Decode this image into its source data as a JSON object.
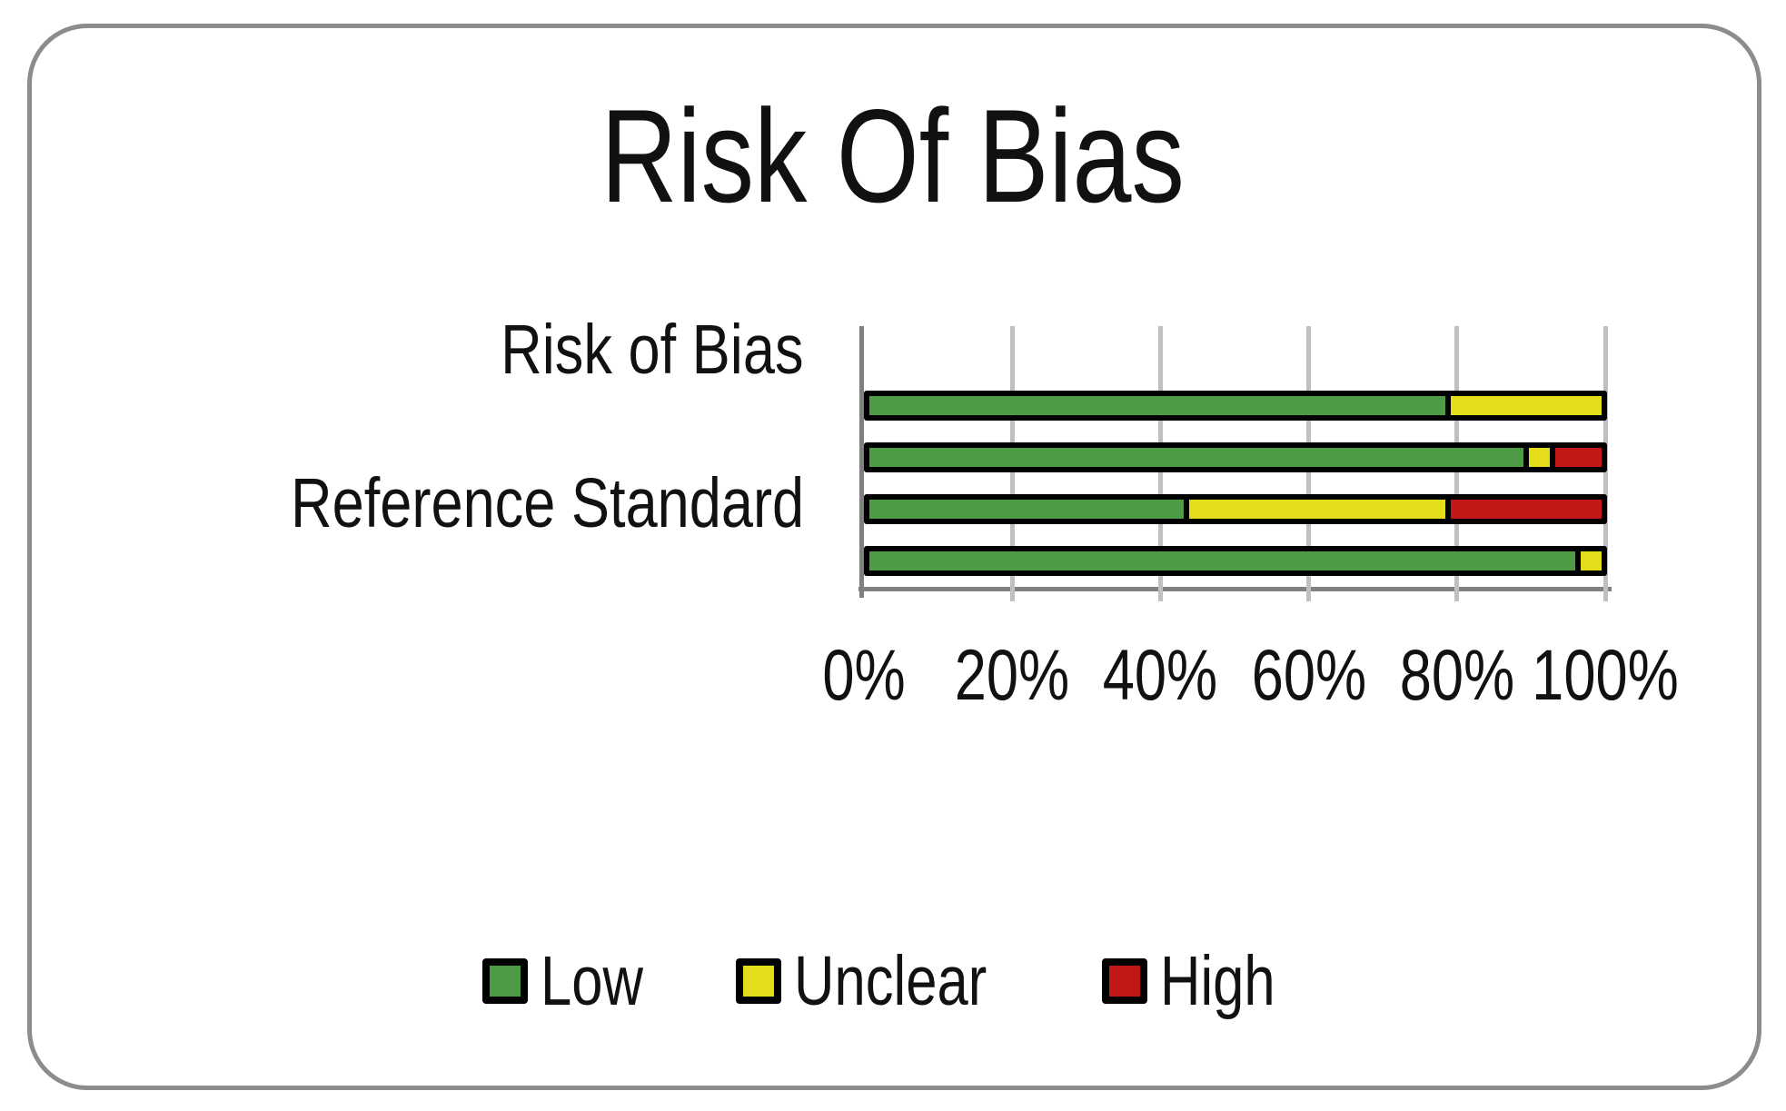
{
  "figure": {
    "title": "Risk Of Bias"
  },
  "chart_data": {
    "type": "bar",
    "orientation": "horizontal",
    "stacked": true,
    "units": "percent",
    "title": "Risk Of Bias",
    "xlabel": "",
    "ylabel": "",
    "x_axis": {
      "range": [
        0,
        100
      ],
      "tick_labels": [
        "0%",
        "20%",
        "40%",
        "60%",
        "80%",
        "100%"
      ],
      "gridlines": true
    },
    "legend": {
      "position": "bottom",
      "entries": [
        {
          "label": "Low",
          "color": "#4f9c47"
        },
        {
          "label": "Unclear",
          "color": "#e3dd1c"
        },
        {
          "label": "High",
          "color": "#c11717"
        }
      ]
    },
    "rows": [
      {
        "label": "Risk of Bias",
        "segments": [
          {
            "name": "Low",
            "value": 78.6
          },
          {
            "name": "Unclear",
            "value": 21.4
          }
        ]
      },
      {
        "label": "",
        "segments": [
          {
            "name": "Low",
            "value": 89.3
          },
          {
            "name": "Unclear",
            "value": 3.6
          },
          {
            "name": "High",
            "value": 7.1
          }
        ]
      },
      {
        "label": "Reference Standard",
        "segments": [
          {
            "name": "Low",
            "value": 42.9
          },
          {
            "name": "Unclear",
            "value": 35.7
          },
          {
            "name": "High",
            "value": 21.4
          }
        ]
      },
      {
        "label": "",
        "segments": [
          {
            "name": "Low",
            "value": 96.4
          },
          {
            "name": "Unclear",
            "value": 3.6
          }
        ]
      }
    ]
  }
}
